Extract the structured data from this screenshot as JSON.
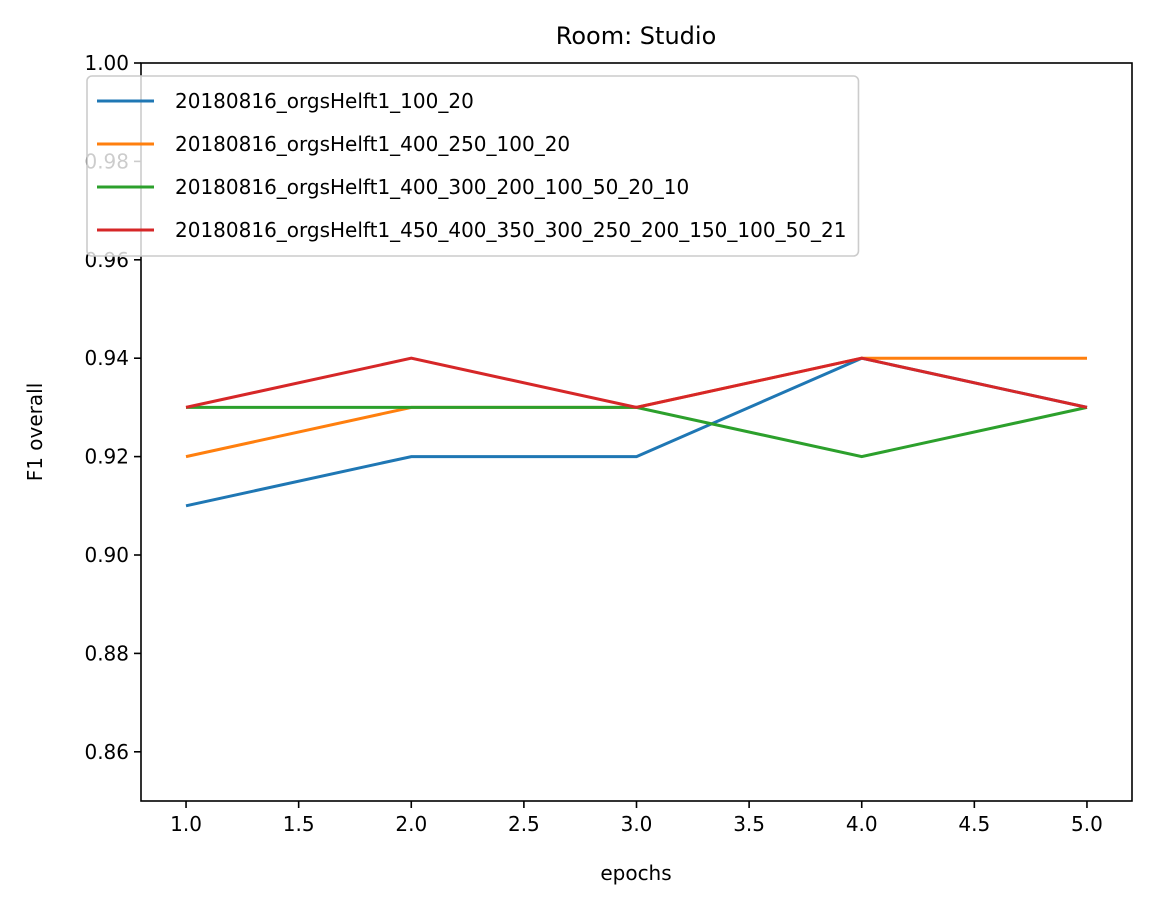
{
  "chart_data": {
    "type": "line",
    "title": "Room: Studio",
    "xlabel": "epochs",
    "ylabel": "F1 overall",
    "xlim": [
      0.8,
      5.2
    ],
    "ylim": [
      0.85,
      1.0
    ],
    "x_ticks": [
      1.0,
      1.5,
      2.0,
      2.5,
      3.0,
      3.5,
      4.0,
      4.5,
      5.0
    ],
    "x_tick_labels": [
      "1.0",
      "1.5",
      "2.0",
      "2.5",
      "3.0",
      "3.5",
      "4.0",
      "4.5",
      "5.0"
    ],
    "y_ticks": [
      0.86,
      0.88,
      0.9,
      0.92,
      0.94,
      0.96,
      0.98,
      1.0
    ],
    "y_tick_labels": [
      "0.86",
      "0.88",
      "0.90",
      "0.92",
      "0.94",
      "0.96",
      "0.98",
      "1.00"
    ],
    "grid": false,
    "legend_position": "top",
    "x": [
      1,
      2,
      3,
      4,
      5
    ],
    "series": [
      {
        "name": "20180816_orgsHelft1_100_20",
        "color": "#1f77b4",
        "values": [
          0.91,
          0.92,
          0.92,
          0.94,
          0.93
        ]
      },
      {
        "name": "20180816_orgsHelft1_400_250_100_20",
        "color": "#ff7f0e",
        "values": [
          0.92,
          0.93,
          0.93,
          0.94,
          0.94
        ]
      },
      {
        "name": "20180816_orgsHelft1_400_300_200_100_50_20_10",
        "color": "#2ca02c",
        "values": [
          0.93,
          0.93,
          0.93,
          0.92,
          0.93
        ]
      },
      {
        "name": "20180816_orgsHelft1_450_400_350_300_250_200_150_100_50_21",
        "color": "#d62728",
        "values": [
          0.93,
          0.94,
          0.93,
          0.94,
          0.93
        ]
      }
    ]
  }
}
